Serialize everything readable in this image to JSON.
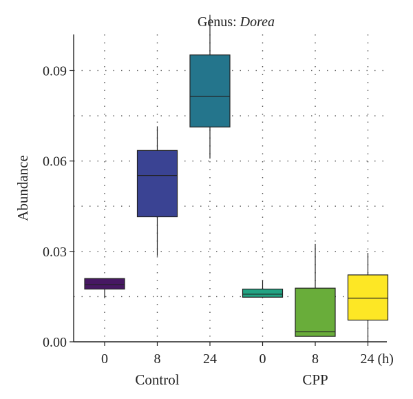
{
  "chart_data": {
    "type": "box",
    "title_prefix": "Genus: ",
    "title_italic": "Dorea",
    "ylabel": "Abundance",
    "ylim": [
      0.0,
      0.102
    ],
    "yticks": [
      {
        "value": 0.0,
        "label": "0.00"
      },
      {
        "value": 0.03,
        "label": "0.03"
      },
      {
        "value": 0.06,
        "label": "0.06"
      },
      {
        "value": 0.09,
        "label": "0.09"
      }
    ],
    "grid": true,
    "categories": [
      "0",
      "8",
      "24",
      "0",
      "8",
      "24 (h)"
    ],
    "groups": [
      {
        "label": "Control",
        "indices": [
          0,
          1,
          2
        ]
      },
      {
        "label": "CPP",
        "indices": [
          3,
          4,
          5
        ]
      }
    ],
    "boxes": [
      {
        "group": "Control",
        "time": "0",
        "min": 0.0145,
        "q1": 0.0175,
        "median": 0.019,
        "q3": 0.021,
        "max": 0.021,
        "color": "#471863"
      },
      {
        "group": "Control",
        "time": "8",
        "min": 0.0285,
        "q1": 0.0415,
        "median": 0.0552,
        "q3": 0.0635,
        "max": 0.0715,
        "color": "#3a4393"
      },
      {
        "group": "Control",
        "time": "24",
        "min": 0.0608,
        "q1": 0.0713,
        "median": 0.0815,
        "q3": 0.0952,
        "max": 0.1085,
        "color": "#24758c"
      },
      {
        "group": "CPP",
        "time": "0",
        "min": 0.0145,
        "q1": 0.0148,
        "median": 0.0158,
        "q3": 0.0175,
        "max": 0.0205,
        "color": "#22a383"
      },
      {
        "group": "CPP",
        "time": "8",
        "min": 0.0018,
        "q1": 0.0018,
        "median": 0.0033,
        "q3": 0.0178,
        "max": 0.0325,
        "color": "#69ad3a"
      },
      {
        "group": "CPP",
        "time": "24",
        "min": 0.0,
        "q1": 0.0072,
        "median": 0.0145,
        "q3": 0.0222,
        "max": 0.0295,
        "color": "#fde725"
      }
    ]
  }
}
